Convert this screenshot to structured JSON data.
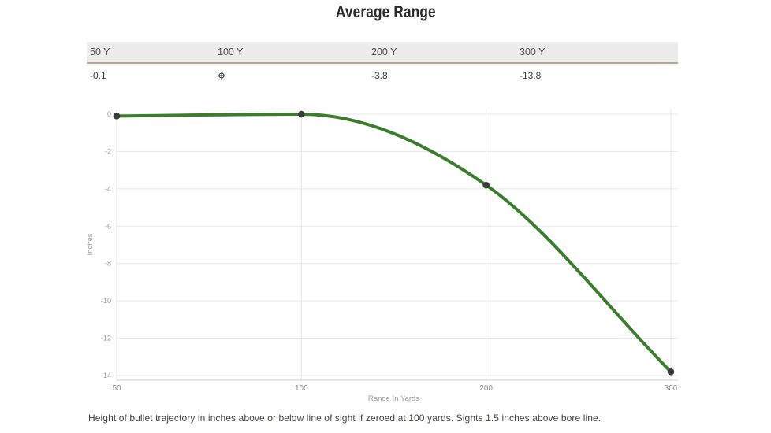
{
  "page": {
    "title": "Average Range",
    "caption": "Height of bullet trajectory in inches above or below line of sight if zeroed at 100 yards. Sights 1.5 inches above bore line."
  },
  "table": {
    "headers": [
      "50 Y",
      "100 Y",
      "200 Y",
      "300 Y"
    ],
    "values": [
      "-0.1",
      "",
      "-3.8",
      "-13.8"
    ],
    "zero_icon": "crosshair",
    "header_bg": "#ececec",
    "header_border_color": "#b3aa8d"
  },
  "chart_data": {
    "type": "line",
    "title": "Average Range",
    "x": [
      50,
      100,
      200,
      300
    ],
    "series": [
      {
        "name": "bullet-trajectory",
        "values": [
          -0.1,
          0,
          -3.8,
          -13.8
        ]
      }
    ],
    "xlabel": "Range In Yards",
    "ylabel": "Inches",
    "ylim": [
      -14,
      0
    ],
    "yticks": [
      0,
      -2,
      -4,
      -6,
      -8,
      -10,
      -12,
      -14
    ],
    "xtick_labels": [
      "50",
      "100",
      "200",
      "300"
    ],
    "x_axis_spacing": "equal-categorical",
    "grid": true,
    "legend": "none",
    "smooth": true,
    "markers": true,
    "line_color": "#3a7d2c",
    "marker_color": "#3a3a3a",
    "grid_color": "#e7e7e7",
    "axis_line_color": "#cccccc"
  }
}
